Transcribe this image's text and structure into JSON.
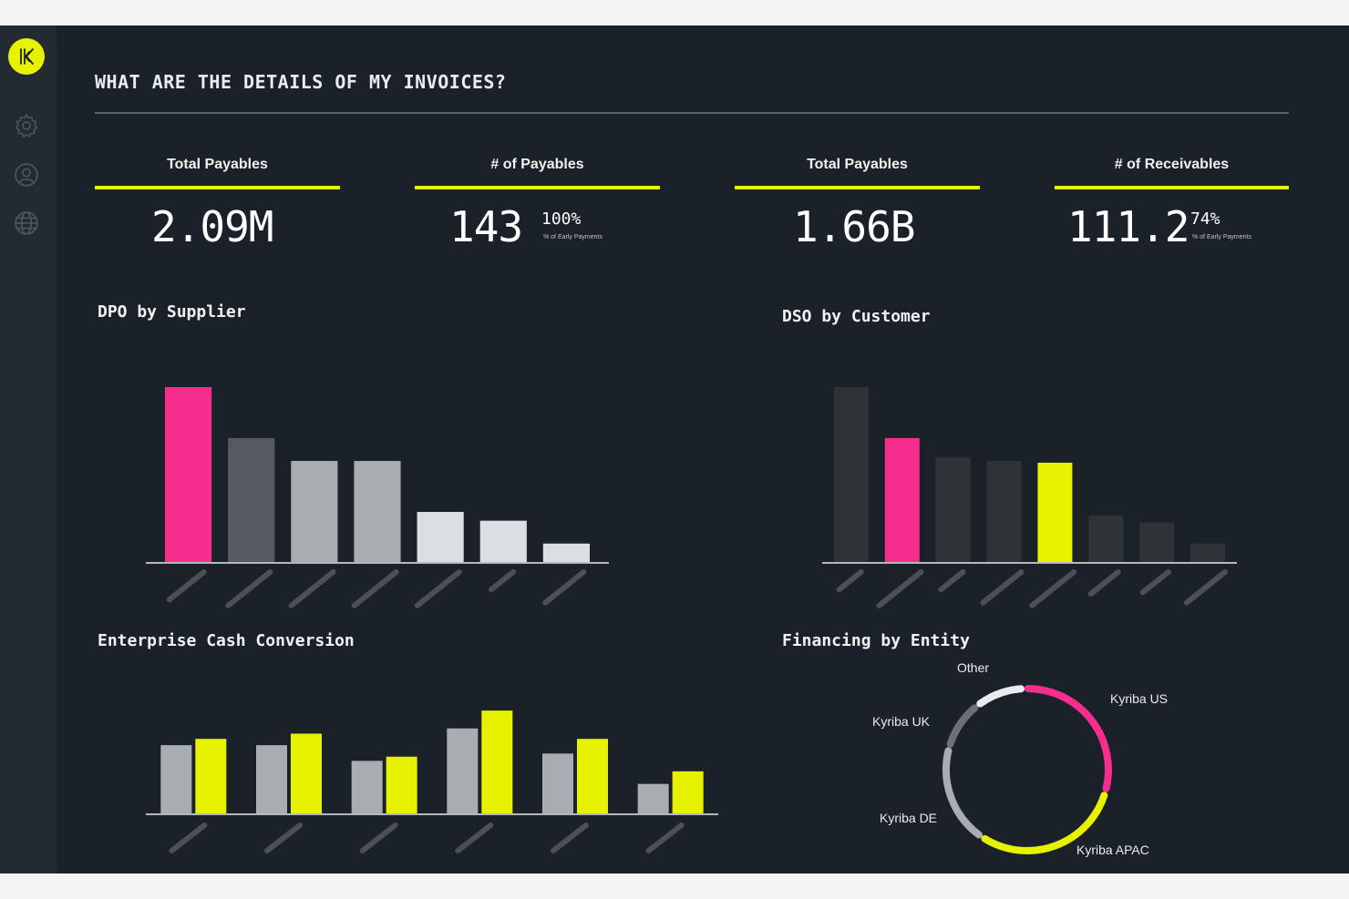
{
  "app": {
    "logo_icon": "kyriba-logo-icon",
    "sidebar_icons": [
      "settings-gear-icon",
      "user-profile-icon",
      "globe-icon"
    ]
  },
  "page": {
    "title": "WHAT ARE THE DETAILS OF MY INVOICES?"
  },
  "colors": {
    "background": "#1b2128",
    "sidebar": "#242a31",
    "accent_yellow": "#e6f200",
    "accent_pink": "#f72d8e"
  },
  "kpis": [
    {
      "label": "Total Payables",
      "value": "2.09M"
    },
    {
      "label": "# of Payables",
      "value": "143",
      "pct": "100%",
      "sub": "% of Early Payments"
    },
    {
      "label": "Total Payables",
      "value": "1.66B"
    },
    {
      "label": "# of Receivables",
      "value": "111.2",
      "pct": "74%",
      "sub": "% of Early Payments"
    }
  ],
  "chart_data": [
    {
      "id": "dpo",
      "type": "bar",
      "title": "DPO by Supplier",
      "categories": [
        "",
        "",
        "",
        "",
        "",
        "",
        ""
      ],
      "values": [
        100,
        71,
        58,
        58,
        29,
        24,
        11
      ],
      "colors": [
        "#f72d8e",
        "#555a60",
        "#a8adb2",
        "#a8adb2",
        "#dadfe3",
        "#dadfe3",
        "#dadfe3"
      ],
      "ylim": [
        0,
        100
      ]
    },
    {
      "id": "dso",
      "type": "bar",
      "title": "DSO by Customer",
      "categories": [
        "",
        "",
        "",
        "",
        "",
        "",
        "",
        ""
      ],
      "values": [
        100,
        71,
        60,
        58,
        57,
        27,
        23,
        11
      ],
      "colors": [
        "#2e3338",
        "#f72d8e",
        "#2e3338",
        "#2e3338",
        "#e6f200",
        "#2e3338",
        "#2e3338",
        "#2e3338"
      ],
      "ylim": [
        0,
        100
      ]
    },
    {
      "id": "ecc",
      "type": "bar",
      "title": "Enterprise Cash Conversion",
      "categories": [
        "",
        "",
        "",
        "",
        "",
        ""
      ],
      "series": [
        {
          "values": [
            66,
            66,
            51,
            82,
            58,
            29
          ],
          "color": "#a8adb2"
        },
        {
          "values": [
            72,
            77,
            55,
            99,
            72,
            41
          ],
          "color": "#e6f200"
        }
      ],
      "ylim": [
        0,
        100
      ]
    },
    {
      "id": "financing",
      "type": "pie",
      "title": "Financing by Entity",
      "slices": [
        {
          "label": "Kyriba US",
          "value": 30,
          "color": "#f72d8e"
        },
        {
          "label": "Kyriba APAC",
          "value": 30,
          "color": "#e6f200"
        },
        {
          "label": "Kyriba DE",
          "value": 20,
          "color": "#a8adb2"
        },
        {
          "label": "Kyriba UK",
          "value": 10,
          "color": "#6b7076"
        },
        {
          "label": "Other",
          "value": 10,
          "color": "#e9ecef"
        }
      ]
    }
  ]
}
